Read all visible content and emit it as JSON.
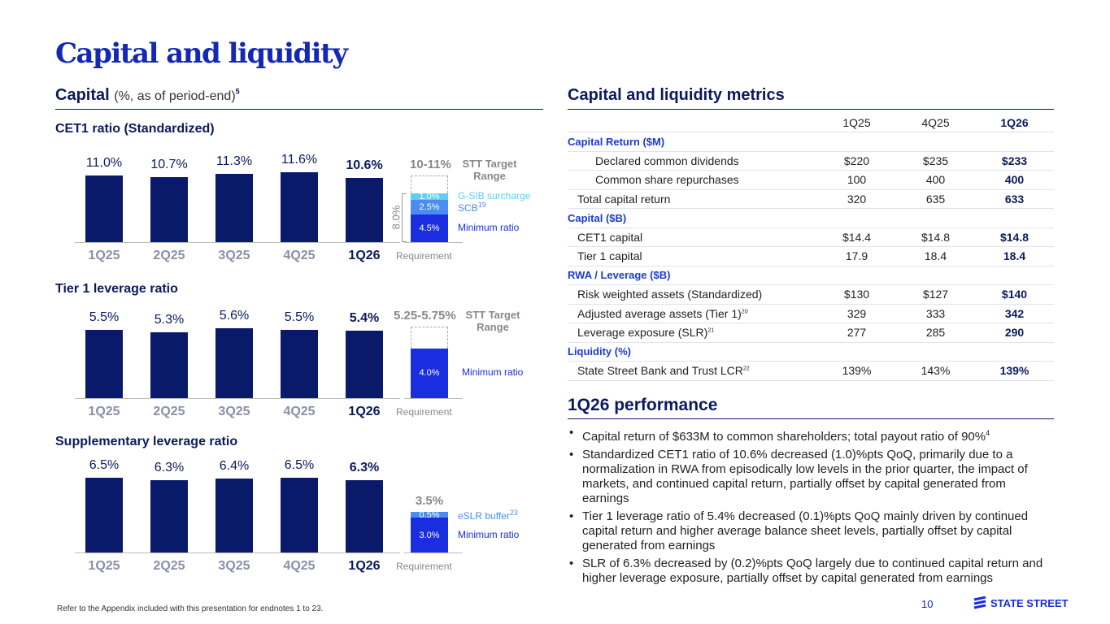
{
  "title": "Capital and liquidity",
  "capital": {
    "heading": "Capital",
    "subheading": "(%, as of period-end)",
    "note": "5"
  },
  "chart_data": [
    {
      "type": "bar",
      "title": "CET1 ratio (Standardized)",
      "categories": [
        "1Q25",
        "2Q25",
        "3Q25",
        "4Q25",
        "1Q26"
      ],
      "values": [
        11.0,
        10.7,
        11.3,
        11.6,
        10.6
      ],
      "labels": [
        "11.0%",
        "10.7%",
        "11.3%",
        "11.6%",
        "10.6%"
      ],
      "requirement": {
        "label": "Requirement",
        "total_label": "8.0%",
        "target": "10-11%",
        "target_label": "STT Target Range",
        "target_top": 11.0,
        "segments": [
          {
            "name": "Minimum ratio",
            "value": 4.5,
            "label": "4.5%",
            "color": "#1a2de0"
          },
          {
            "name": "SCB",
            "note": "19",
            "value": 2.5,
            "label": "2.5%",
            "color": "#4a8cf0"
          },
          {
            "name": "G-SIB surcharge",
            "value": 1.0,
            "label": "1.0%",
            "color": "#5ecff0"
          }
        ]
      }
    },
    {
      "type": "bar",
      "title": "Tier 1 leverage ratio",
      "categories": [
        "1Q25",
        "2Q25",
        "3Q25",
        "4Q25",
        "1Q26"
      ],
      "values": [
        5.5,
        5.3,
        5.6,
        5.5,
        5.4
      ],
      "labels": [
        "5.5%",
        "5.3%",
        "5.6%",
        "5.5%",
        "5.4%"
      ],
      "requirement": {
        "label": "Requirement",
        "target": "5.25-5.75%",
        "target_label": "STT Target Range",
        "target_top": 5.75,
        "segments": [
          {
            "name": "Minimum ratio",
            "value": 4.0,
            "label": "4.0%",
            "color": "#1a2de0"
          }
        ]
      }
    },
    {
      "type": "bar",
      "title": "Supplementary leverage ratio",
      "categories": [
        "1Q25",
        "2Q25",
        "3Q25",
        "4Q25",
        "1Q26"
      ],
      "values": [
        6.5,
        6.3,
        6.4,
        6.5,
        6.3
      ],
      "labels": [
        "6.5%",
        "6.3%",
        "6.4%",
        "6.5%",
        "6.3%"
      ],
      "requirement": {
        "label": "Requirement",
        "total_label": "3.5%",
        "segments": [
          {
            "name": "Minimum ratio",
            "value": 3.0,
            "label": "3.0%",
            "color": "#1a2de0"
          },
          {
            "name": "eSLR buffer",
            "note": "23",
            "value": 0.5,
            "label": "0.5%",
            "color": "#4a8cf0"
          }
        ]
      }
    }
  ],
  "metrics": {
    "heading": "Capital and liquidity metrics",
    "columns": [
      "1Q25",
      "4Q25",
      "1Q26"
    ],
    "rows": [
      {
        "type": "sec",
        "label": "Capital Return ($M)"
      },
      {
        "label": "Declared common dividends",
        "indent": 2,
        "v": [
          "$220",
          "$235",
          "$233"
        ]
      },
      {
        "label": "Common share repurchases",
        "indent": 2,
        "v": [
          "100",
          "400",
          "400"
        ]
      },
      {
        "label": "Total capital return",
        "indent": 1,
        "v": [
          "320",
          "635",
          "633"
        ]
      },
      {
        "type": "sec",
        "label": "Capital ($B)"
      },
      {
        "label": "CET1 capital",
        "indent": 1,
        "v": [
          "$14.4",
          "$14.8",
          "$14.8"
        ]
      },
      {
        "label": "Tier 1 capital",
        "indent": 1,
        "v": [
          "17.9",
          "18.4",
          "18.4"
        ]
      },
      {
        "type": "sec",
        "label": "RWA / Leverage ($B)"
      },
      {
        "label": "Risk weighted assets (Standardized)",
        "indent": 1,
        "v": [
          "$130",
          "$127",
          "$140"
        ]
      },
      {
        "label": "Adjusted average assets (Tier 1)",
        "note": "20",
        "indent": 1,
        "v": [
          "329",
          "333",
          "342"
        ]
      },
      {
        "label": "Leverage exposure (SLR)",
        "note": "21",
        "indent": 1,
        "v": [
          "277",
          "285",
          "290"
        ]
      },
      {
        "type": "sec",
        "label": "Liquidity (%)"
      },
      {
        "label": "State Street Bank and Trust LCR",
        "note": "22",
        "indent": 1,
        "v": [
          "139%",
          "143%",
          "139%"
        ]
      }
    ]
  },
  "performance": {
    "heading": "1Q26 performance",
    "bullets": [
      "Capital return of $633M to common shareholders; total payout ratio of 90%",
      "Standardized CET1 ratio of 10.6% decreased (1.0)%pts QoQ, primarily due to a normalization in RWA from episodically low levels in the prior quarter, the impact of markets, and continued capital return, partially offset by capital generated from earnings",
      "Tier 1 leverage ratio of 5.4% decreased (0.1)%pts QoQ mainly driven by continued capital return and higher average balance sheet levels, partially offset by capital generated from earnings",
      "SLR of 6.3% decreased by (0.2)%pts QoQ largely due to continued capital return and higher leverage exposure, partially offset by capital generated from earnings"
    ],
    "first_note": "4"
  },
  "footer": {
    "note": "Refer to the Appendix included with this presentation for endnotes 1 to 23.",
    "page": "10",
    "logo": "STATE STREET"
  },
  "colors": {
    "navy": "#0a1a6b",
    "accent": "#1428b4",
    "minimum": "#1a2de0",
    "scb": "#4a8cf0",
    "gsib": "#5ecff0"
  }
}
